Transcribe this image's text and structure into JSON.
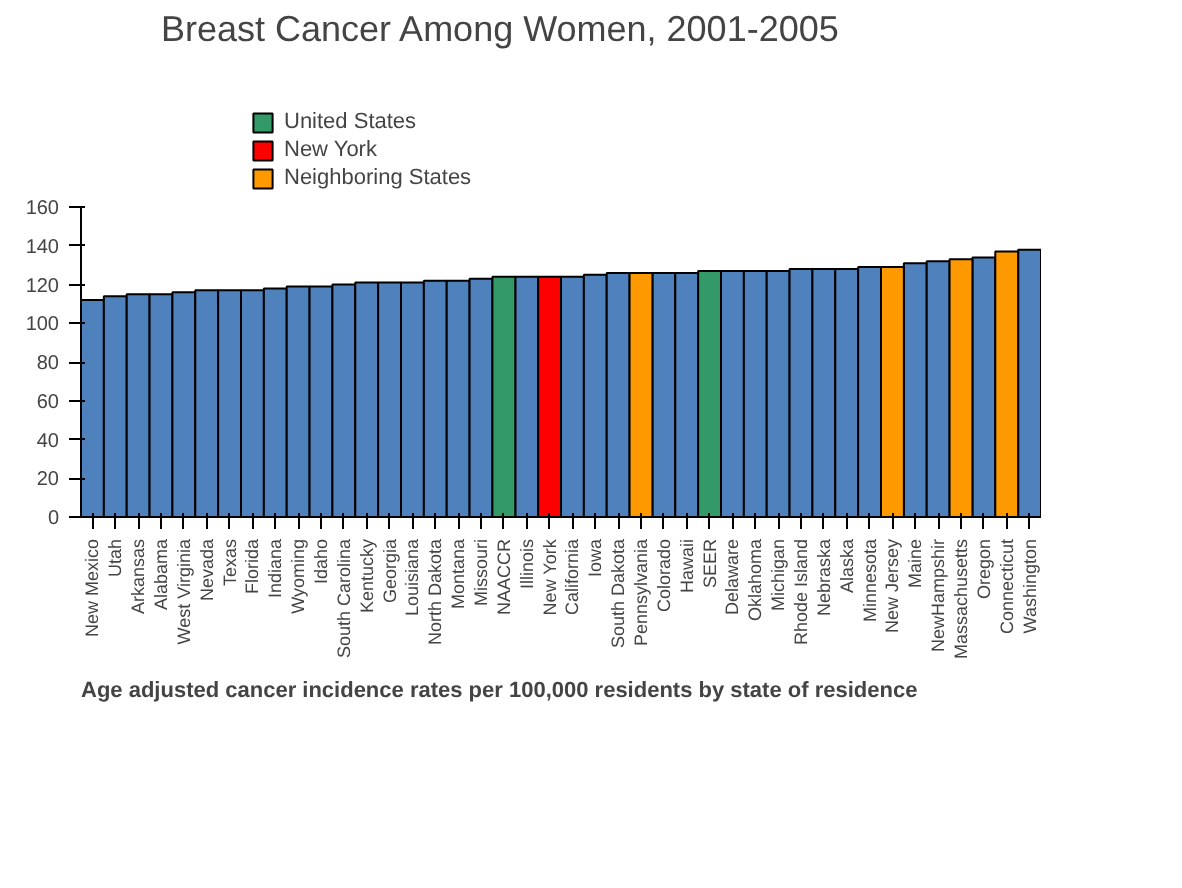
{
  "chart_data": {
    "type": "bar",
    "title": "Breast Cancer Among Women, 2001-2005",
    "categories": [
      "New Mexico",
      "Utah",
      "Arkansas",
      "Alabama",
      "West Virginia",
      "Nevada",
      "Texas",
      "Florida",
      "Indiana",
      "Wyoming",
      "Idaho",
      "South Carolina",
      "Kentucky",
      "Georgia",
      "Louisiana",
      "North Dakota",
      "Montana",
      "Missouri",
      "NAACCR",
      "Illinois",
      "New York",
      "California",
      "Iowa",
      "South Dakota",
      "Pennsylvania",
      "Colorado",
      "Hawaii",
      "SEER",
      "Delaware",
      "Oklahoma",
      "Michigan",
      "Rhode Island",
      "Nebraska",
      "Alaska",
      "Minnesota",
      "New Jersey",
      "Maine",
      "NewHampshir",
      "Massachusetts",
      "Oregon",
      "Connecticut",
      "Washington"
    ],
    "series": [
      {
        "color": "#4f81bd",
        "values": [
          112,
          114,
          115,
          115,
          116,
          117,
          117,
          117,
          118,
          119,
          119,
          120,
          121,
          121,
          121,
          122,
          122,
          123,
          null,
          124,
          null,
          124,
          125,
          126,
          null,
          126,
          126,
          null,
          127,
          127,
          127,
          128,
          128,
          128,
          129,
          null,
          131,
          132,
          null,
          134,
          null,
          138
        ]
      },
      {
        "name": "United States",
        "color": "#339966",
        "values": [
          null,
          null,
          null,
          null,
          null,
          null,
          null,
          null,
          null,
          null,
          null,
          null,
          null,
          null,
          null,
          null,
          null,
          null,
          124,
          null,
          null,
          null,
          null,
          null,
          null,
          null,
          null,
          127,
          null,
          null,
          null,
          null,
          null,
          null,
          null,
          null,
          null,
          null,
          null,
          null,
          null,
          null
        ]
      },
      {
        "name": "New York",
        "color": "#ff0000",
        "values": [
          null,
          null,
          null,
          null,
          null,
          null,
          null,
          null,
          null,
          null,
          null,
          null,
          null,
          null,
          null,
          null,
          null,
          null,
          null,
          null,
          124,
          null,
          null,
          null,
          null,
          null,
          null,
          null,
          null,
          null,
          null,
          null,
          null,
          null,
          null,
          null,
          null,
          null,
          null,
          null,
          null,
          null
        ]
      },
      {
        "name": "Neighboring States",
        "color": "#ff9900",
        "values": [
          null,
          null,
          null,
          null,
          null,
          null,
          null,
          null,
          null,
          null,
          null,
          null,
          null,
          null,
          null,
          null,
          null,
          null,
          null,
          null,
          null,
          null,
          null,
          null,
          126,
          null,
          null,
          null,
          null,
          null,
          null,
          null,
          null,
          null,
          null,
          129,
          null,
          null,
          133,
          null,
          137,
          null
        ]
      }
    ],
    "ylim": [
      0,
      160
    ],
    "yticks": [
      0,
      20,
      40,
      60,
      80,
      100,
      120,
      140,
      160
    ],
    "grid": false,
    "legend": "top",
    "annotations": [
      "Age adjusted cancer incidence rates per 100,000 residents by state of residence"
    ]
  }
}
